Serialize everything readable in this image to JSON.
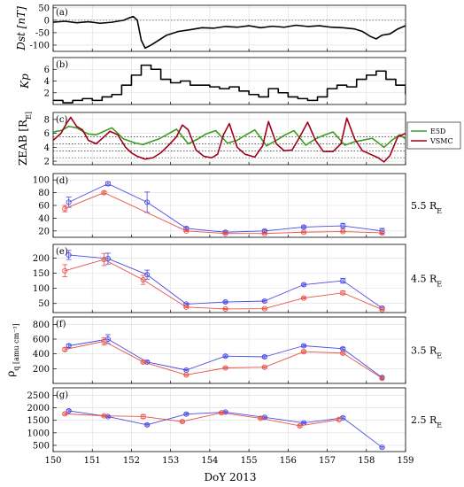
{
  "figure": {
    "xlabel": "DoY 2013",
    "xlim": [
      150,
      159
    ],
    "xticks": [
      150,
      151,
      152,
      153,
      154,
      155,
      156,
      157,
      158,
      159
    ]
  },
  "chart_data": [
    {
      "type": "line",
      "panel": "(a)",
      "ylabel": "Dst [nT]",
      "ylim": [
        -125,
        60
      ],
      "yticks": [
        -100,
        -50,
        0,
        50
      ],
      "reference_line": 0,
      "color": "#000000",
      "x": [
        150,
        150.3,
        150.6,
        150.9,
        151.2,
        151.5,
        151.8,
        151.95,
        152.05,
        152.15,
        152.25,
        152.35,
        152.5,
        152.7,
        152.9,
        153.2,
        153.5,
        153.8,
        154.1,
        154.4,
        154.7,
        155,
        155.3,
        155.6,
        155.9,
        156.2,
        156.5,
        156.8,
        157.1,
        157.4,
        157.7,
        157.9,
        158.1,
        158.25,
        158.4,
        158.6,
        158.8,
        159
      ],
      "y": [
        -8,
        -4,
        -10,
        -6,
        -12,
        -8,
        0,
        10,
        15,
        0,
        -80,
        -112,
        -100,
        -80,
        -60,
        -45,
        -38,
        -30,
        -32,
        -25,
        -28,
        -22,
        -30,
        -24,
        -28,
        -20,
        -25,
        -22,
        -28,
        -30,
        -35,
        -45,
        -65,
        -75,
        -60,
        -55,
        -35,
        -22
      ]
    },
    {
      "type": "line",
      "panel": "(b)",
      "ylabel": "Kp",
      "ylim": [
        0,
        8
      ],
      "yticks": [
        2,
        4,
        6
      ],
      "color": "#000000",
      "x": [
        150,
        150.25,
        150.5,
        150.75,
        151,
        151.25,
        151.5,
        151.75,
        152,
        152.25,
        152.5,
        152.75,
        153,
        153.25,
        153.5,
        153.75,
        154,
        154.25,
        154.5,
        154.75,
        155,
        155.25,
        155.5,
        155.75,
        156,
        156.25,
        156.5,
        156.75,
        157,
        157.25,
        157.5,
        157.75,
        158,
        158.25,
        158.5,
        158.75,
        159
      ],
      "y": [
        0.7,
        0.3,
        0.7,
        1,
        0.7,
        1.3,
        1.7,
        3.3,
        5,
        6.7,
        6,
        4.3,
        3.7,
        4,
        3.3,
        3.3,
        3,
        2.7,
        3,
        2.3,
        1.7,
        1.3,
        2.7,
        2,
        1.3,
        1,
        0.7,
        1.3,
        2.7,
        3.3,
        3,
        4.3,
        5,
        5.7,
        4.3,
        3.3,
        1.7
      ]
    },
    {
      "type": "line",
      "panel": "(c)",
      "ylabel": "ZEAB [R_E]",
      "ylim": [
        1.5,
        9
      ],
      "yticks": [
        2,
        4,
        6,
        8
      ],
      "reference_lines": [
        5.5,
        4.5,
        3.5,
        2.5
      ],
      "legend_position": "right",
      "series": [
        {
          "name": "E5D",
          "color": "#3c9c1e",
          "x": [
            150,
            150.2,
            150.4,
            150.6,
            150.75,
            150.9,
            151.1,
            151.3,
            151.5,
            151.8,
            152.1,
            152.3,
            152.5,
            152.7,
            152.9,
            153.15,
            153.45,
            153.7,
            153.9,
            154.15,
            154.45,
            154.7,
            154.9,
            155.15,
            155.45,
            155.7,
            155.9,
            156.15,
            156.45,
            156.7,
            156.9,
            157.15,
            157.45,
            157.7,
            157.9,
            158.15,
            158.45,
            158.65,
            158.85,
            159
          ],
          "y": [
            6.2,
            6.4,
            7,
            6.8,
            6.3,
            5.9,
            5.8,
            6.3,
            6.8,
            5.2,
            4.6,
            4.4,
            4.8,
            5.2,
            5.8,
            6.6,
            4.5,
            5.2,
            5.9,
            6.4,
            4.6,
            5,
            5.7,
            6.5,
            4.2,
            5,
            5.7,
            6.4,
            4.3,
            5.2,
            5.7,
            6.2,
            4.3,
            4.8,
            5,
            5.3,
            4,
            5,
            5.8,
            5.2
          ]
        },
        {
          "name": "VSMC",
          "color": "#a0001c",
          "x": [
            150,
            150.2,
            150.35,
            150.45,
            150.6,
            150.75,
            150.9,
            151.1,
            151.3,
            151.45,
            151.65,
            151.85,
            152,
            152.15,
            152.35,
            152.55,
            152.75,
            152.95,
            153.15,
            153.3,
            153.45,
            153.65,
            153.85,
            154.05,
            154.2,
            154.35,
            154.5,
            154.7,
            154.9,
            155.15,
            155.35,
            155.5,
            155.7,
            155.9,
            156.1,
            156.3,
            156.5,
            156.7,
            156.9,
            157.15,
            157.35,
            157.5,
            157.7,
            157.9,
            158.1,
            158.3,
            158.45,
            158.6,
            158.8,
            159
          ],
          "y": [
            5,
            6,
            7.5,
            8.3,
            7,
            6.5,
            5,
            4.5,
            5.5,
            6.3,
            5.8,
            4,
            3.2,
            2.7,
            2.3,
            2.5,
            3.2,
            4.3,
            5.5,
            7.2,
            6.5,
            3.6,
            2.7,
            2.5,
            3,
            5.8,
            7.4,
            4,
            3,
            2.6,
            4.2,
            7.7,
            4.5,
            3.5,
            3.6,
            5.5,
            7.6,
            5,
            3.4,
            3.4,
            4.5,
            8.2,
            5.2,
            3.5,
            3,
            2.5,
            1.9,
            2.8,
            5.5,
            6
          ]
        }
      ]
    },
    {
      "type": "line",
      "panel": "(d)",
      "right_label": "5.5 R_E",
      "ylim": [
        10,
        110
      ],
      "yticks": [
        20,
        40,
        60,
        80,
        100
      ],
      "series": [
        {
          "color": "#4a4ae6",
          "x": [
            150.4,
            151.4,
            152.4,
            153.4,
            154.4,
            155.4,
            156.4,
            157.4,
            158.4
          ],
          "y": [
            65,
            94,
            65,
            24,
            18,
            20,
            26,
            28,
            20
          ],
          "err": [
            8,
            3,
            16,
            2,
            2,
            2,
            2,
            4,
            4
          ]
        },
        {
          "color": "#e8534a",
          "x": [
            150.3,
            151.3,
            153.4,
            154.4,
            155.4,
            156.4,
            157.4,
            158.4
          ],
          "y": [
            55,
            80,
            20,
            16,
            16,
            18,
            19,
            17
          ],
          "err": [
            5,
            2,
            1,
            1,
            1,
            1,
            1,
            2
          ]
        }
      ]
    },
    {
      "type": "line",
      "panel": "(e)",
      "right_label": "4.5 R_E",
      "ylim": [
        20,
        245
      ],
      "yticks": [
        50,
        100,
        150,
        200
      ],
      "series": [
        {
          "color": "#4a4ae6",
          "x": [
            150.4,
            151.4,
            152.4,
            153.4,
            154.4,
            155.4,
            156.4,
            157.4,
            158.4
          ],
          "y": [
            210,
            198,
            145,
            48,
            55,
            58,
            112,
            125,
            35
          ],
          "err": [
            15,
            18,
            15,
            3,
            3,
            3,
            4,
            8,
            3
          ]
        },
        {
          "color": "#e8534a",
          "x": [
            150.3,
            151.3,
            152.3,
            153.4,
            154.4,
            155.4,
            156.4,
            157.4,
            158.4
          ],
          "y": [
            158,
            195,
            128,
            38,
            32,
            33,
            68,
            85,
            30
          ],
          "err": [
            20,
            20,
            15,
            2,
            2,
            2,
            3,
            6,
            2
          ]
        }
      ]
    },
    {
      "type": "line",
      "panel": "(f)",
      "ylabel": "ρ_q [amu cm⁻³]",
      "right_label": "3.5 R_E",
      "ylim": [
        0,
        900
      ],
      "yticks": [
        200,
        400,
        600,
        800
      ],
      "series": [
        {
          "color": "#4a4ae6",
          "x": [
            150.4,
            151.4,
            152.4,
            153.4,
            154.4,
            155.4,
            156.4,
            157.4,
            158.4
          ],
          "y": [
            510,
            600,
            290,
            180,
            370,
            360,
            510,
            470,
            80
          ],
          "err": [
            20,
            60,
            15,
            10,
            15,
            15,
            15,
            15,
            10
          ]
        },
        {
          "color": "#e8534a",
          "x": [
            150.3,
            151.3,
            152.3,
            153.4,
            154.4,
            155.4,
            156.4,
            157.4,
            158.4
          ],
          "y": [
            460,
            570,
            290,
            115,
            210,
            220,
            430,
            410,
            70
          ],
          "err": [
            20,
            50,
            15,
            8,
            10,
            10,
            15,
            15,
            8
          ]
        }
      ]
    },
    {
      "type": "line",
      "panel": "(g)",
      "right_label": "2.5 R_E",
      "ylim": [
        250,
        2800
      ],
      "yticks": [
        500,
        1000,
        1500,
        2000,
        2500
      ],
      "series": [
        {
          "color": "#4a4ae6",
          "x": [
            150.4,
            151.4,
            152.4,
            153.4,
            154.4,
            155.4,
            156.4,
            157.4,
            158.4
          ],
          "y": [
            1880,
            1650,
            1320,
            1750,
            1830,
            1620,
            1400,
            1600,
            420
          ],
          "err": [
            40,
            40,
            40,
            40,
            40,
            40,
            40,
            40,
            30
          ]
        },
        {
          "color": "#e8534a",
          "x": [
            150.3,
            151.3,
            152.3,
            153.3,
            154.3,
            155.3,
            156.3,
            157.3
          ],
          "y": [
            1760,
            1680,
            1650,
            1450,
            1800,
            1580,
            1280,
            1530
          ],
          "err": [
            40,
            40,
            80,
            40,
            40,
            40,
            40,
            40
          ]
        }
      ]
    }
  ]
}
